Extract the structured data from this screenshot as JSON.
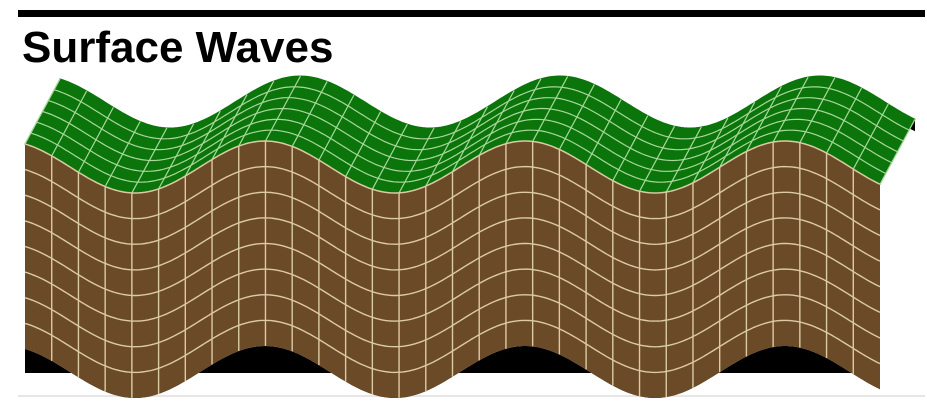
{
  "header": {
    "title": "Surface Waves"
  }
}
